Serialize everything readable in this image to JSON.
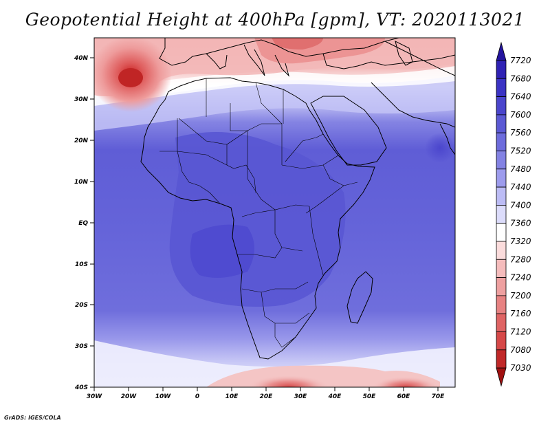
{
  "title": "Geopotential Height at 400hPa [gpm], VT: 2020113021",
  "credit": "GrADS: IGES/COLA",
  "map": {
    "projection": "latlon",
    "lon_range": [
      -30,
      75
    ],
    "lat_range": [
      -40,
      45
    ],
    "lat_labels": [
      "40N",
      "30N",
      "20N",
      "10N",
      "EQ",
      "10S",
      "20S",
      "30S",
      "40S"
    ],
    "lon_labels": [
      "30W",
      "20W",
      "10W",
      "0",
      "10E",
      "20E",
      "30E",
      "40E",
      "50E",
      "60E",
      "70E"
    ]
  },
  "colorbar": {
    "levels": [
      "7720",
      "7680",
      "7640",
      "7600",
      "7560",
      "7520",
      "7480",
      "7440",
      "7400",
      "7360",
      "7320",
      "7280",
      "7240",
      "7200",
      "7160",
      "7120",
      "7080",
      "7030"
    ],
    "colors": [
      "#24149e",
      "#2f22b4",
      "#3b33c4",
      "#4a45cc",
      "#5b59d4",
      "#6d6cdc",
      "#8382e3",
      "#9d9ced",
      "#bcbcf5",
      "#dcdcfb",
      "#ffffff",
      "#fbdcdc",
      "#f5bcbc",
      "#eea0a0",
      "#e78282",
      "#df6464",
      "#d64848",
      "#c02828",
      "#a01010"
    ]
  }
}
